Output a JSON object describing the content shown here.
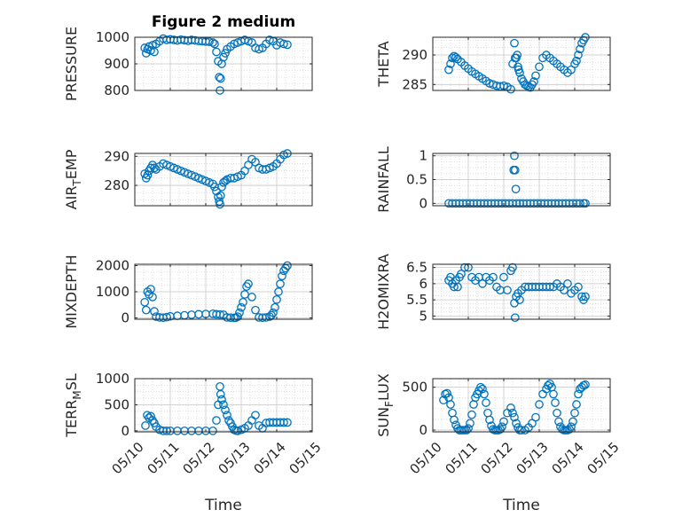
{
  "figure": {
    "title": "Figure 2 medium"
  },
  "colors": {
    "marker": "#0072BD",
    "axis": "#262626",
    "grid": "#c8c8c8"
  },
  "chart_data": [
    {
      "type": "scatter",
      "title": "Figure 2 medium",
      "xlabel": "",
      "ylabel_parts": [
        {
          "t": "PRESSURE",
          "sub": false
        }
      ],
      "ylim": [
        800,
        1000
      ],
      "yticks": [
        800,
        900,
        1000
      ],
      "ytick_labels": [
        "800",
        "900",
        "1000"
      ],
      "xlim": [
        0,
        5
      ],
      "xticks": [
        0,
        1,
        2,
        3,
        4,
        5
      ],
      "xtick_labels": [],
      "grid": true,
      "x": [
        0.28,
        0.32,
        0.36,
        0.4,
        0.45,
        0.5,
        0.55,
        0.6,
        0.7,
        0.8,
        0.9,
        1.0,
        1.1,
        1.2,
        1.3,
        1.4,
        1.5,
        1.6,
        1.7,
        1.8,
        1.9,
        2.0,
        2.1,
        2.2,
        2.25,
        2.3,
        2.35,
        2.38,
        2.4,
        2.42,
        2.45,
        2.5,
        2.55,
        2.6,
        2.7,
        2.8,
        2.9,
        3.0,
        3.1,
        3.2,
        3.3,
        3.4,
        3.5,
        3.6,
        3.7,
        3.8,
        3.9,
        4.0,
        4.1,
        4.2,
        4.3
      ],
      "y": [
        960,
        940,
        955,
        965,
        950,
        970,
        945,
        975,
        985,
        995,
        990,
        992,
        990,
        988,
        991,
        989,
        987,
        990,
        988,
        986,
        985,
        984,
        983,
        980,
        975,
        945,
        910,
        850,
        800,
        845,
        900,
        925,
        940,
        955,
        965,
        975,
        980,
        985,
        990,
        985,
        980,
        960,
        955,
        960,
        975,
        990,
        985,
        970,
        980,
        975,
        972
      ]
    },
    {
      "type": "scatter",
      "xlabel": "",
      "ylabel_parts": [
        {
          "t": "THETA",
          "sub": false
        }
      ],
      "ylim": [
        284,
        293
      ],
      "yticks": [
        285,
        290
      ],
      "ytick_labels": [
        "285",
        "290"
      ],
      "xlim": [
        0,
        5
      ],
      "xticks": [
        0,
        1,
        2,
        3,
        4,
        5
      ],
      "xtick_labels": [],
      "grid": true,
      "x": [
        0.45,
        0.5,
        0.55,
        0.6,
        0.65,
        0.7,
        0.8,
        0.9,
        1.0,
        1.1,
        1.2,
        1.3,
        1.4,
        1.5,
        1.6,
        1.7,
        1.8,
        1.9,
        2.0,
        2.1,
        2.2,
        2.25,
        2.3,
        2.32,
        2.35,
        2.38,
        2.4,
        2.42,
        2.45,
        2.5,
        2.55,
        2.6,
        2.65,
        2.7,
        2.75,
        2.8,
        2.85,
        2.9,
        3.0,
        3.1,
        3.2,
        3.3,
        3.4,
        3.5,
        3.6,
        3.7,
        3.8,
        3.9,
        4.0,
        4.05,
        4.1,
        4.15,
        4.2,
        4.25,
        4.3
      ],
      "y": [
        287.5,
        288.5,
        289.5,
        289.8,
        289.6,
        289.3,
        288.8,
        288.2,
        287.7,
        287.2,
        286.8,
        286.4,
        286.0,
        285.6,
        285.2,
        285.0,
        284.8,
        284.7,
        284.8,
        284.6,
        284.2,
        288.5,
        292.0,
        289.5,
        289.5,
        290.0,
        288.0,
        287.5,
        287.0,
        286.0,
        285.5,
        285.0,
        284.8,
        284.6,
        284.5,
        285.0,
        285.5,
        286.5,
        288.0,
        289.5,
        290.0,
        289.5,
        289.0,
        288.5,
        288.0,
        287.5,
        287.0,
        287.5,
        288.5,
        289.0,
        290.0,
        291.0,
        292.0,
        292.5,
        293.0
      ]
    },
    {
      "type": "scatter",
      "xlabel": "",
      "ylabel_parts": [
        {
          "t": "AIR",
          "sub": false
        },
        {
          "t": "T",
          "sub": true
        },
        {
          "t": "EMP",
          "sub": false
        }
      ],
      "ylim": [
        273,
        291
      ],
      "yticks": [
        280,
        290
      ],
      "ytick_labels": [
        "280",
        "290"
      ],
      "xlim": [
        0,
        5
      ],
      "xticks": [
        0,
        1,
        2,
        3,
        4,
        5
      ],
      "xtick_labels": [],
      "grid": true,
      "x": [
        0.28,
        0.32,
        0.36,
        0.4,
        0.45,
        0.5,
        0.55,
        0.6,
        0.7,
        0.8,
        0.9,
        1.0,
        1.1,
        1.2,
        1.3,
        1.4,
        1.5,
        1.6,
        1.7,
        1.8,
        1.9,
        2.0,
        2.1,
        2.2,
        2.25,
        2.3,
        2.35,
        2.38,
        2.4,
        2.42,
        2.45,
        2.5,
        2.55,
        2.6,
        2.7,
        2.8,
        2.9,
        3.0,
        3.1,
        3.2,
        3.3,
        3.4,
        3.5,
        3.6,
        3.7,
        3.8,
        3.9,
        4.0,
        4.1,
        4.2,
        4.3
      ],
      "y": [
        284.0,
        282.5,
        283.5,
        285.0,
        286.0,
        287.0,
        286.0,
        285.5,
        286.5,
        287.5,
        287.0,
        286.5,
        286.0,
        285.5,
        285.0,
        284.5,
        284.0,
        283.5,
        283.0,
        282.5,
        282.0,
        281.5,
        281.0,
        280.5,
        279.5,
        278.0,
        276.0,
        274.5,
        273.5,
        276.5,
        279.5,
        281.0,
        281.5,
        282.0,
        282.5,
        282.5,
        283.0,
        283.5,
        285.0,
        287.0,
        289.0,
        288.0,
        286.0,
        285.5,
        285.5,
        286.0,
        286.5,
        287.5,
        289.0,
        290.5,
        291.0
      ]
    },
    {
      "type": "scatter",
      "xlabel": "",
      "ylabel_parts": [
        {
          "t": "RAINFALL",
          "sub": false
        }
      ],
      "ylim": [
        -0.05,
        1.05
      ],
      "yticks": [
        0,
        0.5,
        1
      ],
      "ytick_labels": [
        "0",
        "0.5",
        "1"
      ],
      "xlim": [
        0,
        5
      ],
      "xticks": [
        0,
        1,
        2,
        3,
        4,
        5
      ],
      "xtick_labels": [],
      "grid": true,
      "x": [
        0.45,
        0.55,
        0.65,
        0.75,
        0.85,
        0.95,
        1.05,
        1.15,
        1.25,
        1.35,
        1.45,
        1.55,
        1.65,
        1.75,
        1.85,
        1.95,
        2.05,
        2.15,
        2.25,
        2.28,
        2.3,
        2.32,
        2.34,
        2.36,
        2.45,
        2.55,
        2.65,
        2.75,
        2.85,
        2.95,
        3.05,
        3.15,
        3.25,
        3.35,
        3.45,
        3.55,
        3.65,
        3.75,
        3.85,
        3.95,
        4.05,
        4.15,
        4.25,
        4.3
      ],
      "y": [
        0,
        0,
        0,
        0,
        0,
        0,
        0,
        0,
        0,
        0,
        0,
        0,
        0,
        0,
        0,
        0,
        0,
        0,
        0,
        0.7,
        1.0,
        0.7,
        0.3,
        0,
        0,
        0,
        0,
        0,
        0,
        0,
        0,
        0,
        0,
        0,
        0,
        0,
        0,
        0,
        0,
        0,
        0,
        0,
        0,
        0
      ]
    },
    {
      "type": "scatter",
      "xlabel": "",
      "ylabel_parts": [
        {
          "t": "MIXDEPTH",
          "sub": false
        }
      ],
      "ylim": [
        -50,
        2050
      ],
      "yticks": [
        0,
        1000,
        2000
      ],
      "ytick_labels": [
        "0",
        "1000",
        "2000"
      ],
      "xlim": [
        0,
        5
      ],
      "xticks": [
        0,
        1,
        2,
        3,
        4,
        5
      ],
      "xtick_labels": [],
      "grid": true,
      "x": [
        0.28,
        0.32,
        0.36,
        0.4,
        0.45,
        0.5,
        0.55,
        0.6,
        0.7,
        0.8,
        0.9,
        1.0,
        1.2,
        1.4,
        1.6,
        1.8,
        2.0,
        2.2,
        2.3,
        2.4,
        2.5,
        2.6,
        2.7,
        2.8,
        2.85,
        2.9,
        2.95,
        3.0,
        3.05,
        3.1,
        3.15,
        3.2,
        3.3,
        3.4,
        3.5,
        3.6,
        3.7,
        3.8,
        3.85,
        3.9,
        3.95,
        4.0,
        4.05,
        4.1,
        4.15,
        4.2,
        4.25,
        4.3
      ],
      "y": [
        600,
        300,
        1000,
        900,
        1100,
        800,
        250,
        50,
        20,
        10,
        30,
        60,
        80,
        100,
        120,
        140,
        150,
        160,
        140,
        130,
        120,
        20,
        10,
        5,
        10,
        50,
        200,
        400,
        600,
        900,
        1200,
        1300,
        800,
        300,
        20,
        10,
        20,
        50,
        100,
        200,
        400,
        700,
        1000,
        1300,
        1600,
        1800,
        1900,
        2000
      ]
    },
    {
      "type": "scatter",
      "xlabel": "",
      "ylabel_parts": [
        {
          "t": "H2OMIXRA",
          "sub": false
        }
      ],
      "ylim": [
        4.9,
        6.6
      ],
      "yticks": [
        5,
        5.5,
        6,
        6.5
      ],
      "ytick_labels": [
        "5",
        "5.5",
        "6",
        "6.5"
      ],
      "xlim": [
        0,
        5
      ],
      "xticks": [
        0,
        1,
        2,
        3,
        4,
        5
      ],
      "xtick_labels": [],
      "grid": true,
      "x": [
        0.45,
        0.5,
        0.55,
        0.6,
        0.65,
        0.7,
        0.75,
        0.8,
        0.9,
        1.0,
        1.1,
        1.2,
        1.3,
        1.4,
        1.5,
        1.6,
        1.7,
        1.8,
        1.9,
        2.0,
        2.1,
        2.2,
        2.25,
        2.3,
        2.32,
        2.35,
        2.4,
        2.45,
        2.5,
        2.6,
        2.7,
        2.8,
        2.9,
        3.0,
        3.1,
        3.2,
        3.3,
        3.4,
        3.5,
        3.6,
        3.7,
        3.8,
        3.9,
        4.0,
        4.1,
        4.2,
        4.25,
        4.3
      ],
      "y": [
        6.1,
        6.2,
        6.0,
        5.9,
        6.1,
        5.9,
        6.2,
        6.3,
        6.5,
        6.5,
        6.2,
        6.1,
        6.2,
        6.0,
        6.2,
        6.1,
        6.2,
        5.9,
        5.8,
        6.2,
        5.8,
        6.4,
        6.5,
        5.4,
        4.95,
        5.6,
        5.7,
        5.5,
        5.8,
        5.9,
        5.9,
        5.9,
        5.9,
        5.9,
        5.9,
        5.9,
        5.9,
        5.9,
        6.0,
        5.9,
        5.8,
        6.0,
        5.7,
        5.8,
        5.9,
        5.6,
        5.5,
        5.6
      ]
    },
    {
      "type": "scatter",
      "xlabel": "Time",
      "ylabel_parts": [
        {
          "t": "TERR",
          "sub": false
        },
        {
          "t": "M",
          "sub": true
        },
        {
          "t": "SL",
          "sub": false
        }
      ],
      "ylim": [
        -20,
        1000
      ],
      "yticks": [
        0,
        500,
        1000
      ],
      "ytick_labels": [
        "0",
        "500",
        "1000"
      ],
      "xlim": [
        0,
        5
      ],
      "xticks": [
        0,
        1,
        2,
        3,
        4,
        5
      ],
      "xtick_labels": [
        "05/10",
        "05/11",
        "05/12",
        "05/13",
        "05/14",
        "05/15"
      ],
      "grid": true,
      "x": [
        0.3,
        0.35,
        0.4,
        0.45,
        0.5,
        0.55,
        0.6,
        0.7,
        0.8,
        0.9,
        1.0,
        1.2,
        1.4,
        1.6,
        1.8,
        2.0,
        2.2,
        2.3,
        2.35,
        2.4,
        2.42,
        2.45,
        2.5,
        2.55,
        2.6,
        2.65,
        2.7,
        2.75,
        2.8,
        2.85,
        2.9,
        3.0,
        3.1,
        3.2,
        3.3,
        3.4,
        3.5,
        3.6,
        3.7,
        3.8,
        3.9,
        4.0,
        4.1,
        4.2,
        4.3
      ],
      "y": [
        100,
        300,
        250,
        280,
        200,
        150,
        80,
        20,
        0,
        0,
        0,
        0,
        0,
        0,
        0,
        0,
        0,
        200,
        500,
        850,
        700,
        600,
        500,
        400,
        300,
        200,
        150,
        80,
        20,
        5,
        0,
        20,
        50,
        100,
        200,
        300,
        100,
        50,
        150,
        160,
        160,
        160,
        160,
        160,
        160
      ]
    },
    {
      "type": "scatter",
      "xlabel": "Time",
      "ylabel_parts": [
        {
          "t": "SUN",
          "sub": false
        },
        {
          "t": "F",
          "sub": true
        },
        {
          "t": "LUX",
          "sub": false
        }
      ],
      "ylim": [
        -20,
        600
      ],
      "yticks": [
        0,
        500
      ],
      "ytick_labels": [
        "0",
        "500"
      ],
      "xlim": [
        0,
        5
      ],
      "xticks": [
        0,
        1,
        2,
        3,
        4,
        5
      ],
      "xtick_labels": [
        "05/10",
        "05/11",
        "05/12",
        "05/13",
        "05/14",
        "05/15"
      ],
      "grid": true,
      "x": [
        0.3,
        0.35,
        0.4,
        0.45,
        0.5,
        0.55,
        0.6,
        0.65,
        0.7,
        0.75,
        0.8,
        0.85,
        0.9,
        0.95,
        1.0,
        1.05,
        1.1,
        1.15,
        1.2,
        1.25,
        1.3,
        1.35,
        1.4,
        1.45,
        1.5,
        1.55,
        1.6,
        1.65,
        1.7,
        1.75,
        1.8,
        1.85,
        1.9,
        1.95,
        2.0,
        2.1,
        2.2,
        2.25,
        2.3,
        2.35,
        2.4,
        2.45,
        2.5,
        2.6,
        2.7,
        2.8,
        2.9,
        3.0,
        3.1,
        3.2,
        3.25,
        3.3,
        3.35,
        3.4,
        3.45,
        3.5,
        3.55,
        3.6,
        3.65,
        3.7,
        3.75,
        3.8,
        3.85,
        3.9,
        3.95,
        4.0,
        4.05,
        4.1,
        4.15,
        4.2,
        4.25,
        4.3
      ],
      "y": [
        350,
        420,
        430,
        380,
        300,
        200,
        120,
        60,
        20,
        0,
        0,
        0,
        0,
        0,
        20,
        80,
        180,
        300,
        380,
        420,
        460,
        500,
        480,
        420,
        320,
        200,
        120,
        50,
        10,
        0,
        0,
        0,
        10,
        40,
        100,
        200,
        260,
        200,
        150,
        80,
        30,
        0,
        0,
        0,
        30,
        80,
        150,
        300,
        420,
        480,
        520,
        540,
        500,
        420,
        320,
        200,
        100,
        40,
        10,
        0,
        0,
        0,
        10,
        40,
        100,
        200,
        300,
        420,
        480,
        500,
        520,
        530
      ]
    }
  ]
}
